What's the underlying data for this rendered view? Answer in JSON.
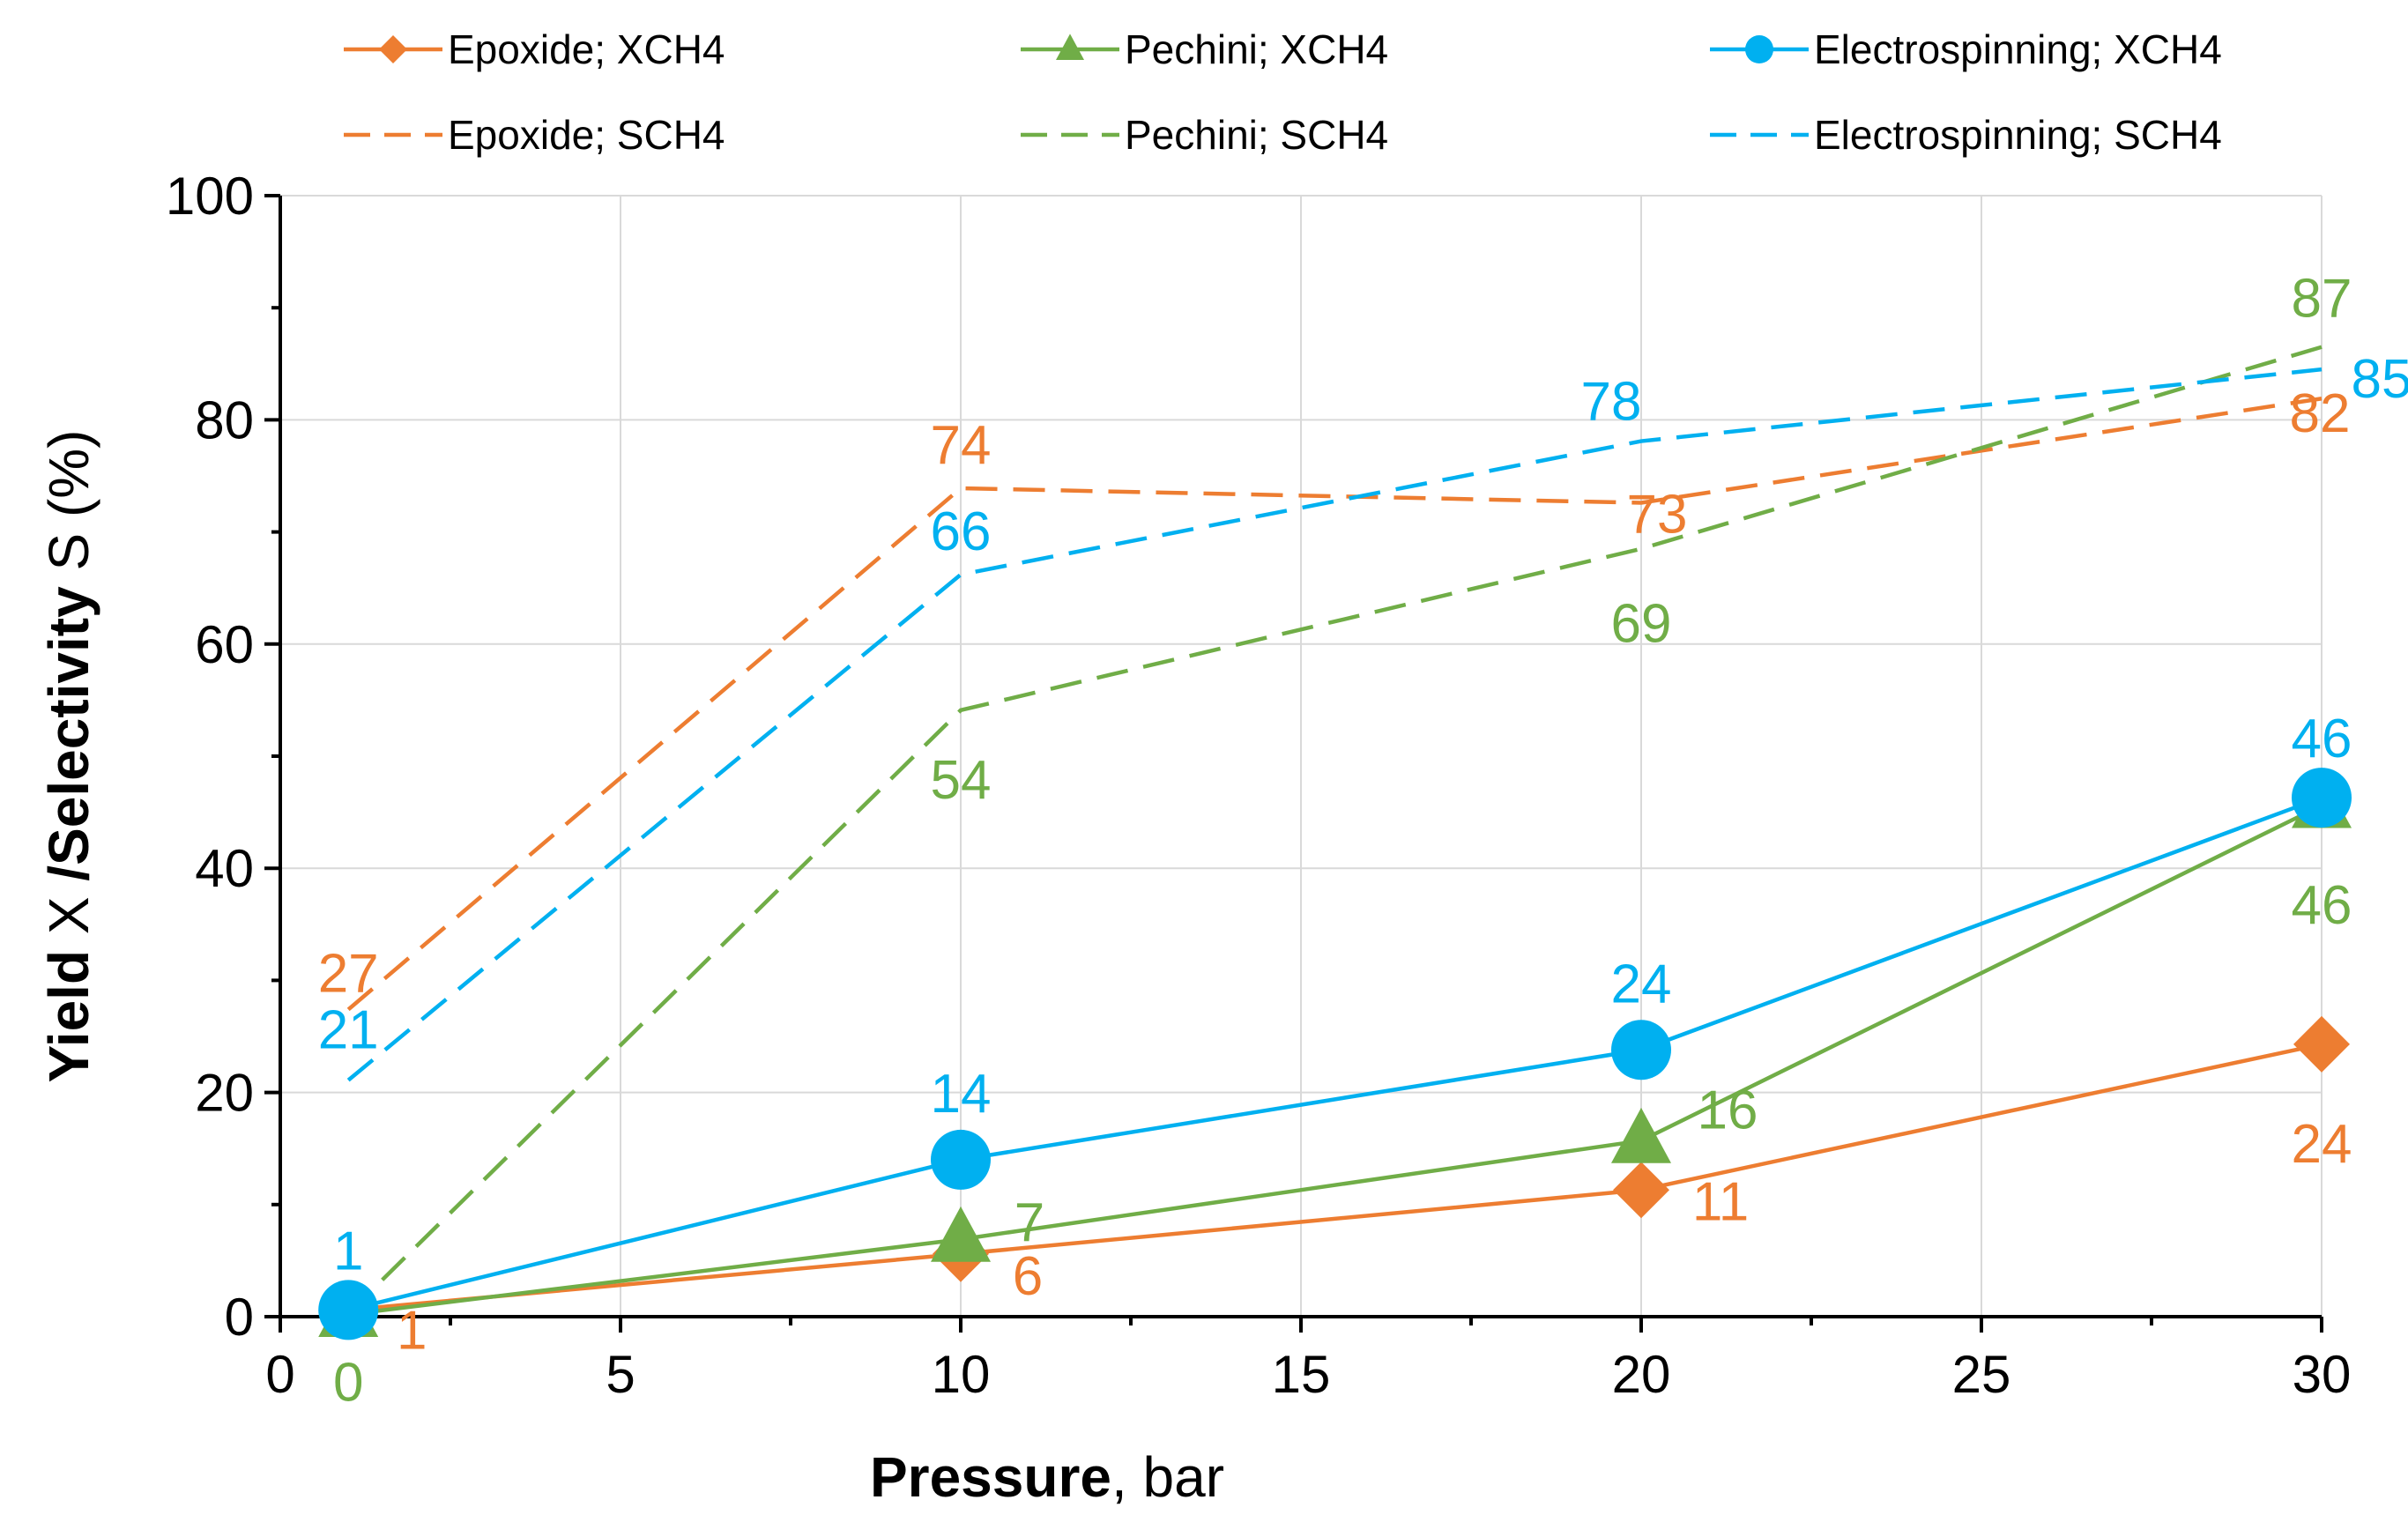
{
  "chart_data": {
    "type": "line",
    "title": "",
    "xlabel_bold": "Pressure",
    "xlabel_rest": ", bar",
    "ylabel_part1": "Yield ",
    "ylabel_part2": "X",
    "ylabel_part3": " /Selectivity ",
    "ylabel_part4": "S",
    "ylabel_part5": " (%)",
    "xlim": [
      0,
      30
    ],
    "ylim": [
      0,
      100
    ],
    "x_ticks": [
      0,
      5,
      10,
      15,
      20,
      25,
      30
    ],
    "y_ticks": [
      0,
      20,
      40,
      60,
      80,
      100
    ],
    "grid": true,
    "legend_position": "top",
    "colors": {
      "epoxide": "#ED7D31",
      "pechini": "#70AD47",
      "electrospinning": "#00B0F0"
    },
    "series": [
      {
        "id": "epx",
        "name": "Epoxide; XCH4",
        "color": "#ED7D31",
        "style": "solid",
        "marker": "diamond",
        "x": [
          1,
          10,
          20,
          30
        ],
        "values": [
          0.6,
          5.6,
          11.3,
          24.3
        ],
        "labels": [
          "1",
          "6",
          "11",
          "24"
        ]
      },
      {
        "id": "pex",
        "name": "Pechini; XCH4",
        "color": "#70AD47",
        "style": "solid",
        "marker": "triangle",
        "x": [
          1,
          10,
          20,
          30
        ],
        "values": [
          0.2,
          6.9,
          15.7,
          45.6
        ],
        "labels": [
          "0",
          "7",
          "16",
          "46"
        ]
      },
      {
        "id": "elx",
        "name": "Electrospinning; XCH4",
        "color": "#00B0F0",
        "style": "solid",
        "marker": "circle",
        "x": [
          1,
          10,
          20,
          30
        ],
        "values": [
          0.6,
          14.0,
          23.8,
          46.3
        ],
        "labels": [
          "1",
          "14",
          "24",
          "46"
        ]
      },
      {
        "id": "eps",
        "name": "Epoxide; SCH4",
        "color": "#ED7D31",
        "style": "dashed",
        "marker": "none",
        "x": [
          1,
          10,
          20,
          30
        ],
        "values": [
          27.4,
          73.9,
          72.6,
          81.9
        ],
        "labels": [
          "27",
          "74",
          "73",
          "82"
        ]
      },
      {
        "id": "pes",
        "name": "Pechini; SCH4",
        "color": "#70AD47",
        "style": "dashed",
        "marker": "none",
        "x": [
          1,
          10,
          20,
          30
        ],
        "values": [
          0.3,
          54.1,
          68.5,
          86.5
        ],
        "labels": [
          "0",
          "54",
          "69",
          "87"
        ]
      },
      {
        "id": "els",
        "name": "Electrospinning; SCH4",
        "color": "#00B0F0",
        "style": "dashed",
        "marker": "none",
        "x": [
          1,
          10,
          20,
          30
        ],
        "values": [
          21.1,
          66.2,
          78.1,
          84.5
        ],
        "labels": [
          "21",
          "66",
          "78",
          "85"
        ]
      }
    ]
  }
}
